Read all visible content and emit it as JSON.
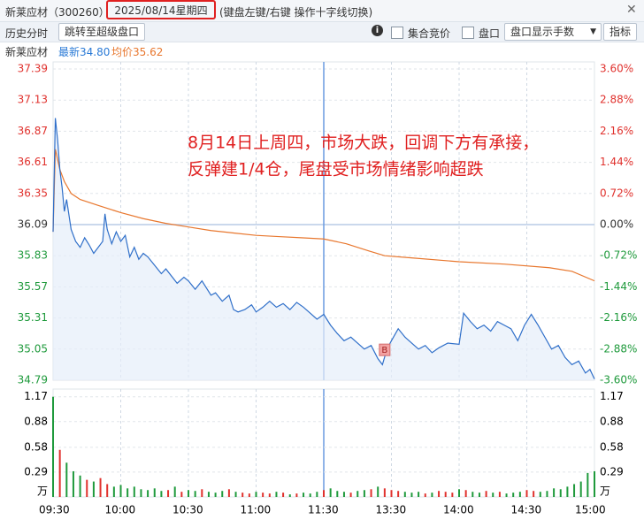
{
  "header": {
    "stock": "新莱应材（300260）",
    "date": "2025/08/14星期四",
    "hint": "(键盘左键/右键 操作十字线切换)"
  },
  "toolbar": {
    "label": "历史分时",
    "jump": "跳转至超级盘口",
    "auction": "集合竞价",
    "book": "盘口",
    "display": "盘口显示手数",
    "indicator": "指标"
  },
  "info": {
    "name": "新莱应材",
    "latest": "最新34.80",
    "avg": "均价35.62"
  },
  "chart_data": [
    {
      "type": "line",
      "annotation": [
        "8月14日上周四，市场大跌，回调下方有承接，",
        "反弹建1/4仓，尾盘受市场情绪影响超跌"
      ],
      "xlim": [
        0,
        240
      ],
      "ylim": [
        34.79,
        37.39
      ],
      "yticks": [
        37.39,
        37.13,
        36.87,
        36.61,
        36.35,
        36.09,
        35.83,
        35.57,
        35.31,
        35.05,
        34.79
      ],
      "y2lim": [
        -3.6,
        3.6
      ],
      "y2ticks": [
        {
          "value": 3.6,
          "label": "3.60%"
        },
        {
          "value": 2.88,
          "label": "2.88%"
        },
        {
          "value": 2.16,
          "label": "2.16%"
        },
        {
          "value": 1.44,
          "label": "1.44%"
        },
        {
          "value": 0.72,
          "label": "0.72%"
        },
        {
          "value": 0,
          "label": "0.00%"
        },
        {
          "value": -0.72,
          "label": "-0.72%"
        },
        {
          "value": -1.44,
          "label": "-1.44%"
        },
        {
          "value": -2.16,
          "label": "-2.16%"
        },
        {
          "value": -2.88,
          "label": "-2.88%"
        },
        {
          "value": -3.6,
          "label": "-3.60%"
        }
      ],
      "grid": true,
      "up_color": "#e0312d",
      "down_color": "#1f9a3c",
      "flat_color": "#333333",
      "series": [
        {
          "color": "#2f6fc9",
          "x": [
            0,
            1,
            2,
            3,
            4,
            5,
            6,
            8,
            10,
            12,
            14,
            16,
            18,
            20,
            22,
            23,
            24,
            26,
            28,
            30,
            32,
            34,
            36,
            38,
            40,
            42,
            45,
            48,
            50,
            55,
            58,
            60,
            63,
            66,
            70,
            72,
            75,
            78,
            80,
            82,
            85,
            88,
            90,
            93,
            96,
            99,
            102,
            105,
            108,
            111,
            114,
            117,
            120,
            123,
            126,
            129,
            132,
            135,
            138,
            141,
            144,
            146,
            148,
            150,
            153,
            156,
            159,
            162,
            165,
            168,
            171,
            175,
            180,
            182,
            185,
            188,
            191,
            194,
            197,
            200,
            203,
            206,
            209,
            212,
            215,
            218,
            221,
            224,
            227,
            230,
            233,
            236,
            238,
            240
          ],
          "values": [
            36.03,
            36.98,
            36.8,
            36.55,
            36.4,
            36.2,
            36.3,
            36.05,
            35.95,
            35.9,
            35.98,
            35.92,
            35.85,
            35.9,
            35.95,
            36.18,
            36.05,
            35.93,
            36.03,
            35.95,
            36.0,
            35.82,
            35.9,
            35.8,
            35.85,
            35.82,
            35.75,
            35.68,
            35.72,
            35.6,
            35.65,
            35.62,
            35.55,
            35.62,
            35.5,
            35.52,
            35.45,
            35.5,
            35.38,
            35.36,
            35.38,
            35.42,
            35.36,
            35.4,
            35.45,
            35.4,
            35.43,
            35.38,
            35.44,
            35.4,
            35.35,
            35.3,
            35.34,
            35.25,
            35.18,
            35.12,
            35.15,
            35.1,
            35.05,
            35.08,
            34.97,
            34.92,
            35.05,
            35.12,
            35.22,
            35.15,
            35.1,
            35.05,
            35.08,
            35.02,
            35.06,
            35.1,
            35.09,
            35.35,
            35.28,
            35.22,
            35.25,
            35.2,
            35.28,
            35.25,
            35.22,
            35.12,
            35.25,
            35.34,
            35.25,
            35.15,
            35.05,
            35.08,
            34.98,
            34.92,
            34.95,
            34.85,
            34.88,
            34.8
          ]
        },
        {
          "color": "#e8772e",
          "x": [
            0,
            1,
            3,
            5,
            8,
            12,
            20,
            30,
            40,
            50,
            60,
            70,
            80,
            90,
            100,
            110,
            120,
            130,
            140,
            147,
            160,
            180,
            200,
            220,
            230,
            240
          ],
          "values": [
            36.03,
            36.72,
            36.55,
            36.45,
            36.35,
            36.3,
            36.25,
            36.19,
            36.14,
            36.1,
            36.07,
            36.04,
            36.02,
            36.0,
            35.99,
            35.98,
            35.97,
            35.93,
            35.87,
            35.83,
            35.81,
            35.78,
            35.76,
            35.73,
            35.7,
            35.62
          ]
        }
      ],
      "marker": {
        "label": "B",
        "x": 147,
        "value": 35.04
      }
    },
    {
      "type": "bar",
      "xlim": [
        0,
        240
      ],
      "xticks": [
        {
          "value": 0,
          "label": "09:30"
        },
        {
          "value": 30,
          "label": "10:00"
        },
        {
          "value": 60,
          "label": "10:30"
        },
        {
          "value": 90,
          "label": "11:00"
        },
        {
          "value": 120,
          "label": "11:30"
        },
        {
          "value": 150,
          "label": "13:30"
        },
        {
          "value": 180,
          "label": "14:00"
        },
        {
          "value": 210,
          "label": "14:30"
        },
        {
          "value": 240,
          "label": "15:00"
        }
      ],
      "ylim": [
        0,
        1.26
      ],
      "yticks": [
        1.17,
        0.88,
        0.58,
        0.29
      ],
      "unit": "万",
      "x": [
        0,
        3,
        6,
        9,
        12,
        15,
        18,
        21,
        24,
        27,
        30,
        33,
        36,
        39,
        42,
        45,
        48,
        51,
        54,
        57,
        60,
        63,
        66,
        69,
        72,
        75,
        78,
        81,
        84,
        87,
        90,
        93,
        96,
        99,
        102,
        105,
        108,
        111,
        114,
        117,
        120,
        123,
        126,
        129,
        132,
        135,
        138,
        141,
        144,
        147,
        150,
        153,
        156,
        159,
        162,
        165,
        168,
        171,
        174,
        177,
        180,
        183,
        186,
        189,
        192,
        195,
        198,
        201,
        204,
        207,
        210,
        213,
        216,
        219,
        222,
        225,
        228,
        231,
        234,
        237,
        240
      ],
      "values": [
        1.17,
        0.55,
        0.4,
        0.3,
        0.25,
        0.2,
        0.18,
        0.22,
        0.15,
        0.12,
        0.14,
        0.1,
        0.12,
        0.09,
        0.08,
        0.1,
        0.07,
        0.08,
        0.12,
        0.06,
        0.08,
        0.07,
        0.09,
        0.06,
        0.05,
        0.07,
        0.09,
        0.06,
        0.05,
        0.04,
        0.06,
        0.05,
        0.04,
        0.06,
        0.05,
        0.03,
        0.04,
        0.05,
        0.04,
        0.06,
        0.08,
        0.1,
        0.07,
        0.06,
        0.05,
        0.07,
        0.08,
        0.09,
        0.12,
        0.1,
        0.08,
        0.07,
        0.06,
        0.05,
        0.06,
        0.04,
        0.05,
        0.07,
        0.06,
        0.05,
        0.09,
        0.08,
        0.06,
        0.05,
        0.07,
        0.05,
        0.06,
        0.04,
        0.05,
        0.06,
        0.08,
        0.07,
        0.06,
        0.07,
        0.1,
        0.09,
        0.12,
        0.15,
        0.18,
        0.28,
        0.3
      ]
    }
  ]
}
